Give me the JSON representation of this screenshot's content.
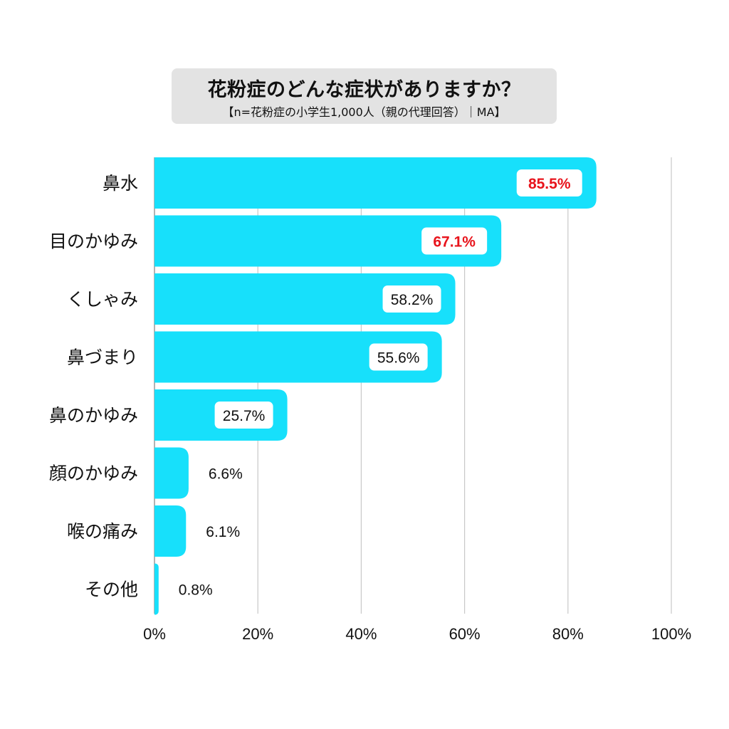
{
  "title": "花粉症のどんな症状がありますか？",
  "subtitle": "【n=花粉症の小学生1,000人（親の代理回答）｜MA】",
  "chart_data": {
    "type": "bar",
    "orientation": "horizontal",
    "categories": [
      "鼻水",
      "目のかゆみ",
      "くしゃみ",
      "鼻づまり",
      "鼻のかゆみ",
      "顔のかゆみ",
      "喉の痛み",
      "その他"
    ],
    "values": [
      85.5,
      67.1,
      58.2,
      55.6,
      25.7,
      6.6,
      6.1,
      0.8
    ],
    "value_labels": [
      "85.5%",
      "67.1%",
      "58.2%",
      "55.6%",
      "25.7%",
      "6.6%",
      "6.1%",
      "0.8%"
    ],
    "highlighted": [
      true,
      true,
      false,
      false,
      false,
      false,
      false,
      false
    ],
    "xlim": [
      0,
      100
    ],
    "xticks": [
      0,
      20,
      40,
      60,
      80,
      100
    ],
    "xtick_labels": [
      "0%",
      "20%",
      "40%",
      "60%",
      "80%",
      "100%"
    ],
    "grid": true,
    "colors": {
      "bar": "#17e0fb",
      "highlight_text": "#e8141c",
      "text": "#111111",
      "grid": "#c8c8c8",
      "axis": "#999999",
      "label_box": "#ffffff"
    }
  }
}
